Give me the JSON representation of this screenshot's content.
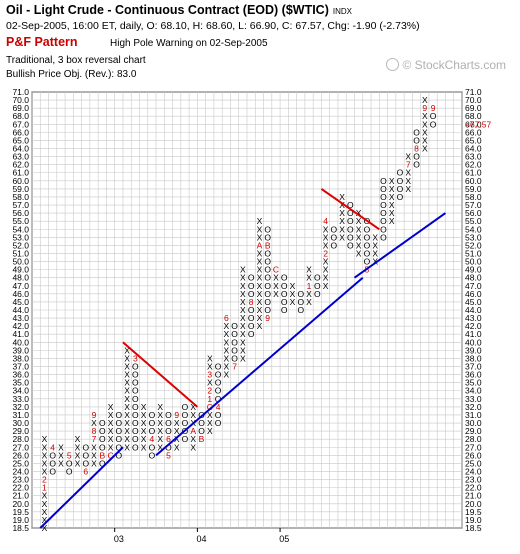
{
  "header": {
    "title": "Oil - Light Crude - Continuous Contract (EOD) ($WTIC)",
    "exchange": "INDX",
    "info": "02-Sep-2005, 16:00 ET, daily, O: 68.10, H: 68.60, L: 66.90, C: 67.57, Chg: -1.90 (-2.73%)",
    "pf_label": "P&F Pattern",
    "pf_warning": "High Pole Warning on 02-Sep-2005",
    "method": "Traditional, 3 box reversal chart",
    "bpo": "Bullish Price Obj. (Rev.): 83.0"
  },
  "brand": {
    "name": "© StockCharts.com"
  },
  "colors": {
    "grid": "#c8c8c8",
    "boxes": "#000000",
    "month_marks": "#cc0000",
    "support_line": "#0000cc",
    "resistance_line": "#dd0000",
    "last_price": "#cc0000"
  },
  "chart_data": {
    "type": "point-and-figure",
    "box_size": 1.0,
    "reversal": 3,
    "ylim": [
      18.5,
      71.0
    ],
    "y_ticks": [
      "18.5",
      "19.0",
      "19.5",
      "20.0",
      "21.0",
      "22.0",
      "23.0",
      "24.0",
      "25.0",
      "26.0",
      "27.0",
      "28.0",
      "29.0",
      "30.0",
      "31.0",
      "32.0",
      "33.0",
      "34.0",
      "35.0",
      "36.0",
      "37.0",
      "38.0",
      "39.0",
      "40.0",
      "41.0",
      "42.0",
      "43.0",
      "44.0",
      "45.0",
      "46.0",
      "47.0",
      "48.0",
      "49.0",
      "50.0",
      "51.0",
      "52.0",
      "53.0",
      "54.0",
      "55.0",
      "56.0",
      "57.0",
      "58.0",
      "59.0",
      "60.0",
      "61.0",
      "62.0",
      "63.0",
      "64.0",
      "65.0",
      "66.0",
      "67.0",
      "68.0",
      "69.0",
      "70.0",
      "71.0"
    ],
    "x_labels": [
      {
        "label": "03",
        "column": 9
      },
      {
        "label": "04",
        "column": 19
      },
      {
        "label": "05",
        "column": 29
      }
    ],
    "last_price_label": "<67.57",
    "last_price_level": 67,
    "columns": [
      {
        "type": "X",
        "low": 18.5,
        "high": 28,
        "marks": {
          "22": "1",
          "23": "2"
        }
      },
      {
        "type": "O",
        "low": 24,
        "high": 27,
        "marks": {
          "27": "4"
        }
      },
      {
        "type": "X",
        "low": 25,
        "high": 27
      },
      {
        "type": "O",
        "low": 24,
        "high": 26,
        "marks": {
          "26": "5"
        }
      },
      {
        "type": "X",
        "low": 25,
        "high": 28
      },
      {
        "type": "O",
        "low": 24,
        "high": 27,
        "marks": {
          "24": "6"
        }
      },
      {
        "type": "X",
        "low": 25,
        "high": 31,
        "marks": {
          "31": "9",
          "29": "8",
          "28": "7"
        }
      },
      {
        "type": "O",
        "low": 25,
        "high": 30,
        "marks": {
          "26": "B"
        }
      },
      {
        "type": "X",
        "low": 26,
        "high": 32,
        "marks": {
          "26": "C"
        }
      },
      {
        "type": "O",
        "low": 26,
        "high": 31
      },
      {
        "type": "X",
        "low": 27,
        "high": 39
      },
      {
        "type": "O",
        "low": 27,
        "high": 38,
        "marks": {
          "38": "3"
        }
      },
      {
        "type": "X",
        "low": 27,
        "high": 32
      },
      {
        "type": "O",
        "low": 26,
        "high": 31,
        "marks": {
          "28": "4"
        }
      },
      {
        "type": "X",
        "low": 27,
        "high": 32
      },
      {
        "type": "O",
        "low": 26,
        "high": 31,
        "marks": {
          "28": "6",
          "26": "5"
        }
      },
      {
        "type": "X",
        "low": 27,
        "high": 31,
        "marks": {
          "31": "9"
        }
      },
      {
        "type": "O",
        "low": 28,
        "high": 32
      },
      {
        "type": "X",
        "low": 27,
        "high": 32,
        "marks": {
          "29": "A"
        }
      },
      {
        "type": "O",
        "low": 28,
        "high": 31,
        "marks": {
          "28": "B"
        }
      },
      {
        "type": "X",
        "low": 29,
        "high": 38,
        "marks": {
          "33": "1",
          "34": "2",
          "36": "3",
          "32": "C"
        }
      },
      {
        "type": "O",
        "low": 30,
        "high": 37,
        "marks": {
          "32": "4"
        }
      },
      {
        "type": "X",
        "low": 36,
        "high": 43,
        "marks": {
          "43": "6"
        }
      },
      {
        "type": "O",
        "low": 37,
        "high": 42,
        "marks": {
          "37": "7"
        }
      },
      {
        "type": "X",
        "low": 38,
        "high": 49
      },
      {
        "type": "O",
        "low": 41,
        "high": 48,
        "marks": {
          "45": "8"
        }
      },
      {
        "type": "X",
        "low": 42,
        "high": 55,
        "marks": {
          "52": "A"
        }
      },
      {
        "type": "O",
        "low": 43,
        "high": 54,
        "marks": {
          "52": "B",
          "43": "9"
        }
      },
      {
        "type": "X",
        "low": 46,
        "high": 49,
        "marks": {
          "49": "C"
        }
      },
      {
        "type": "O",
        "low": 44,
        "high": 48
      },
      {
        "type": "X",
        "low": 45,
        "high": 47
      },
      {
        "type": "O",
        "low": 44,
        "high": 46
      },
      {
        "type": "X",
        "low": 45,
        "high": 49,
        "marks": {
          "47": "1"
        }
      },
      {
        "type": "O",
        "low": 46,
        "high": 48
      },
      {
        "type": "X",
        "low": 47,
        "high": 55,
        "marks": {
          "51": "2",
          "55": "4"
        }
      },
      {
        "type": "O",
        "low": 52,
        "high": 54
      },
      {
        "type": "X",
        "low": 53,
        "high": 58
      },
      {
        "type": "O",
        "low": 52,
        "high": 57
      },
      {
        "type": "X",
        "low": 51,
        "high": 56
      },
      {
        "type": "O",
        "low": 49,
        "high": 55,
        "marks": {
          "49": "5"
        }
      },
      {
        "type": "X",
        "low": 50,
        "high": 53,
        "marks": {
          "54": "6"
        }
      },
      {
        "type": "O",
        "low": 53,
        "high": 60
      },
      {
        "type": "X",
        "low": 55,
        "high": 60
      },
      {
        "type": "O",
        "low": 58,
        "high": 61
      },
      {
        "type": "X",
        "low": 59,
        "high": 63,
        "marks": {
          "62": "7"
        }
      },
      {
        "type": "O",
        "low": 62,
        "high": 66,
        "marks": {
          "64": "8"
        }
      },
      {
        "type": "X",
        "low": 64,
        "high": 70,
        "marks": {
          "69": "9"
        }
      },
      {
        "type": "O",
        "low": 67,
        "high": 69,
        "marks": {
          "69": "9"
        }
      }
    ],
    "trendlines": [
      {
        "kind": "support",
        "from": {
          "column": 0,
          "price": 18.5
        },
        "to": {
          "column": 9,
          "price": 27
        }
      },
      {
        "kind": "support",
        "from": {
          "column": 14,
          "price": 26
        },
        "to": {
          "column": 38,
          "price": 48
        }
      },
      {
        "kind": "support",
        "from": {
          "column": 38,
          "price": 48
        },
        "to": {
          "column": 48,
          "price": 56
        }
      },
      {
        "kind": "resistance",
        "from": {
          "column": 10,
          "price": 40
        },
        "to": {
          "column": 18,
          "price": 32
        }
      },
      {
        "kind": "resistance",
        "from": {
          "column": 34,
          "price": 59
        },
        "to": {
          "column": 40,
          "price": 54
        }
      }
    ]
  }
}
